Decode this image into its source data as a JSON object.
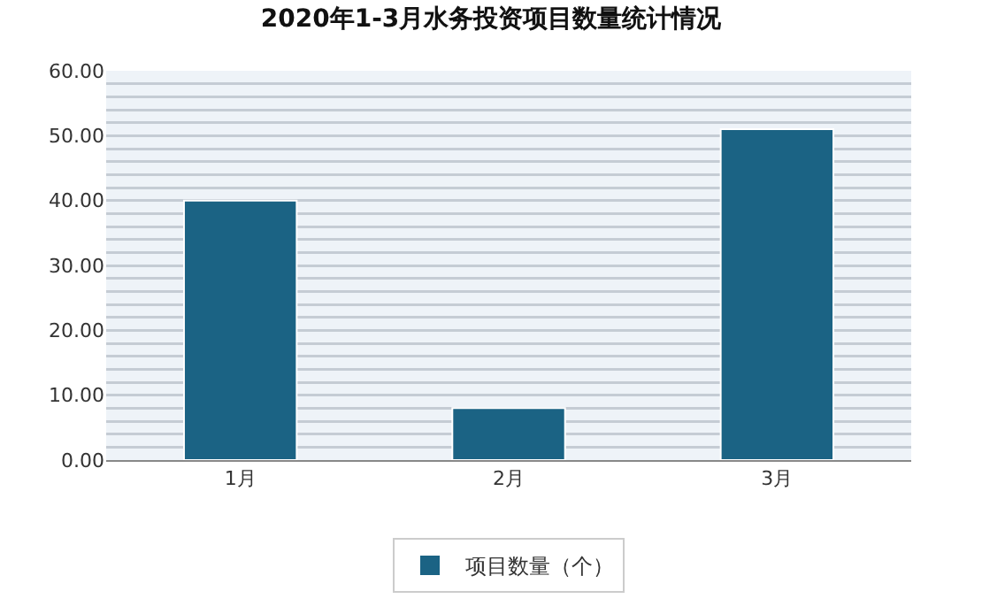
{
  "chart_data": {
    "type": "bar",
    "title": "2020年1-3月水务投资项目数量统计情况",
    "categories": [
      "1月",
      "2月",
      "3月"
    ],
    "series": [
      {
        "name": "项目数量（个）",
        "color": "#1b6384",
        "values": [
          40,
          8,
          51
        ]
      }
    ],
    "ylim": [
      0,
      60
    ],
    "yticks": [
      {
        "value": 0,
        "label": "0.00"
      },
      {
        "value": 2,
        "label": null
      },
      {
        "value": 4,
        "label": null
      },
      {
        "value": 6,
        "label": null
      },
      {
        "value": 8,
        "label": null
      },
      {
        "value": 10,
        "label": "10.00"
      },
      {
        "value": 12,
        "label": null
      },
      {
        "value": 14,
        "label": null
      },
      {
        "value": 16,
        "label": null
      },
      {
        "value": 18,
        "label": null
      },
      {
        "value": 20,
        "label": "20.00"
      },
      {
        "value": 22,
        "label": null
      },
      {
        "value": 24,
        "label": null
      },
      {
        "value": 26,
        "label": null
      },
      {
        "value": 28,
        "label": null
      },
      {
        "value": 30,
        "label": "30.00"
      },
      {
        "value": 32,
        "label": null
      },
      {
        "value": 34,
        "label": null
      },
      {
        "value": 36,
        "label": null
      },
      {
        "value": 38,
        "label": null
      },
      {
        "value": 40,
        "label": "40.00"
      },
      {
        "value": 42,
        "label": null
      },
      {
        "value": 44,
        "label": null
      },
      {
        "value": 46,
        "label": null
      },
      {
        "value": 48,
        "label": null
      },
      {
        "value": 50,
        "label": "50.00"
      },
      {
        "value": 52,
        "label": null
      },
      {
        "value": 54,
        "label": null
      },
      {
        "value": 56,
        "label": null
      },
      {
        "value": 58,
        "label": null
      },
      {
        "value": 60,
        "label": "60.00"
      }
    ],
    "grid": "y",
    "legend": "bottom"
  }
}
